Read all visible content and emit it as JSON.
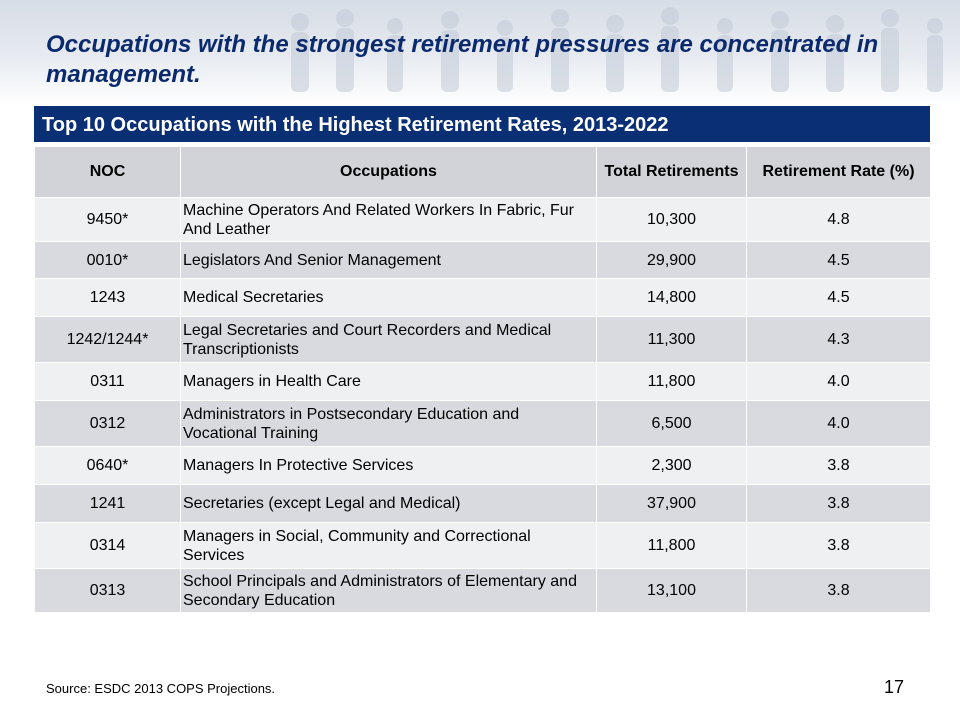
{
  "headline": "Occupations with the strongest retirement pressures are concentrated in management.",
  "table": {
    "title": "Top 10 Occupations with the Highest Retirement Rates, 2013-2022",
    "headers": [
      "NOC",
      "Occupations",
      "Total Retirements",
      "Retirement Rate (%)"
    ],
    "rows": [
      {
        "noc": "9450*",
        "occupation": "Machine Operators And Related Workers In Fabric, Fur And Leather",
        "retirements": "10,300",
        "rate": "4.8"
      },
      {
        "noc": "0010*",
        "occupation": " Legislators And Senior Management",
        "retirements": "29,900",
        "rate": "4.5"
      },
      {
        "noc": "1243",
        "occupation": "Medical Secretaries",
        "retirements": "14,800",
        "rate": "4.5"
      },
      {
        "noc": "1242/1244*",
        "occupation": "Legal Secretaries and Court Recorders and Medical Transcriptionists",
        "retirements": "11,300",
        "rate": "4.3"
      },
      {
        "noc": "0311",
        "occupation": "Managers in Health Care",
        "retirements": "11,800",
        "rate": "4.0"
      },
      {
        "noc": "0312",
        "occupation": "Administrators in Postsecondary Education and Vocational Training",
        "retirements": "6,500",
        "rate": "4.0"
      },
      {
        "noc": "0640*",
        "occupation": "Managers In Protective Services",
        "retirements": "2,300",
        "rate": "3.8"
      },
      {
        "noc": "1241",
        "occupation": "Secretaries (except Legal and Medical)",
        "retirements": "37,900",
        "rate": "3.8"
      },
      {
        "noc": "0314",
        "occupation": "Managers in Social, Community and Correctional Services",
        "retirements": "11,800",
        "rate": "3.8"
      },
      {
        "noc": "0313",
        "occupation": "School Principals and Administrators of Elementary and Secondary Education",
        "retirements": "13,100",
        "rate": "3.8"
      }
    ]
  },
  "source": "Source: ESDC 2013 COPS Projections.",
  "page_number": "17",
  "colors": {
    "title_bar": "#0b2f74",
    "headline": "#0b2a6e",
    "header_row": "#d2d3d9",
    "row_light": "#eff0f2",
    "row_dark": "#d9dae0"
  }
}
